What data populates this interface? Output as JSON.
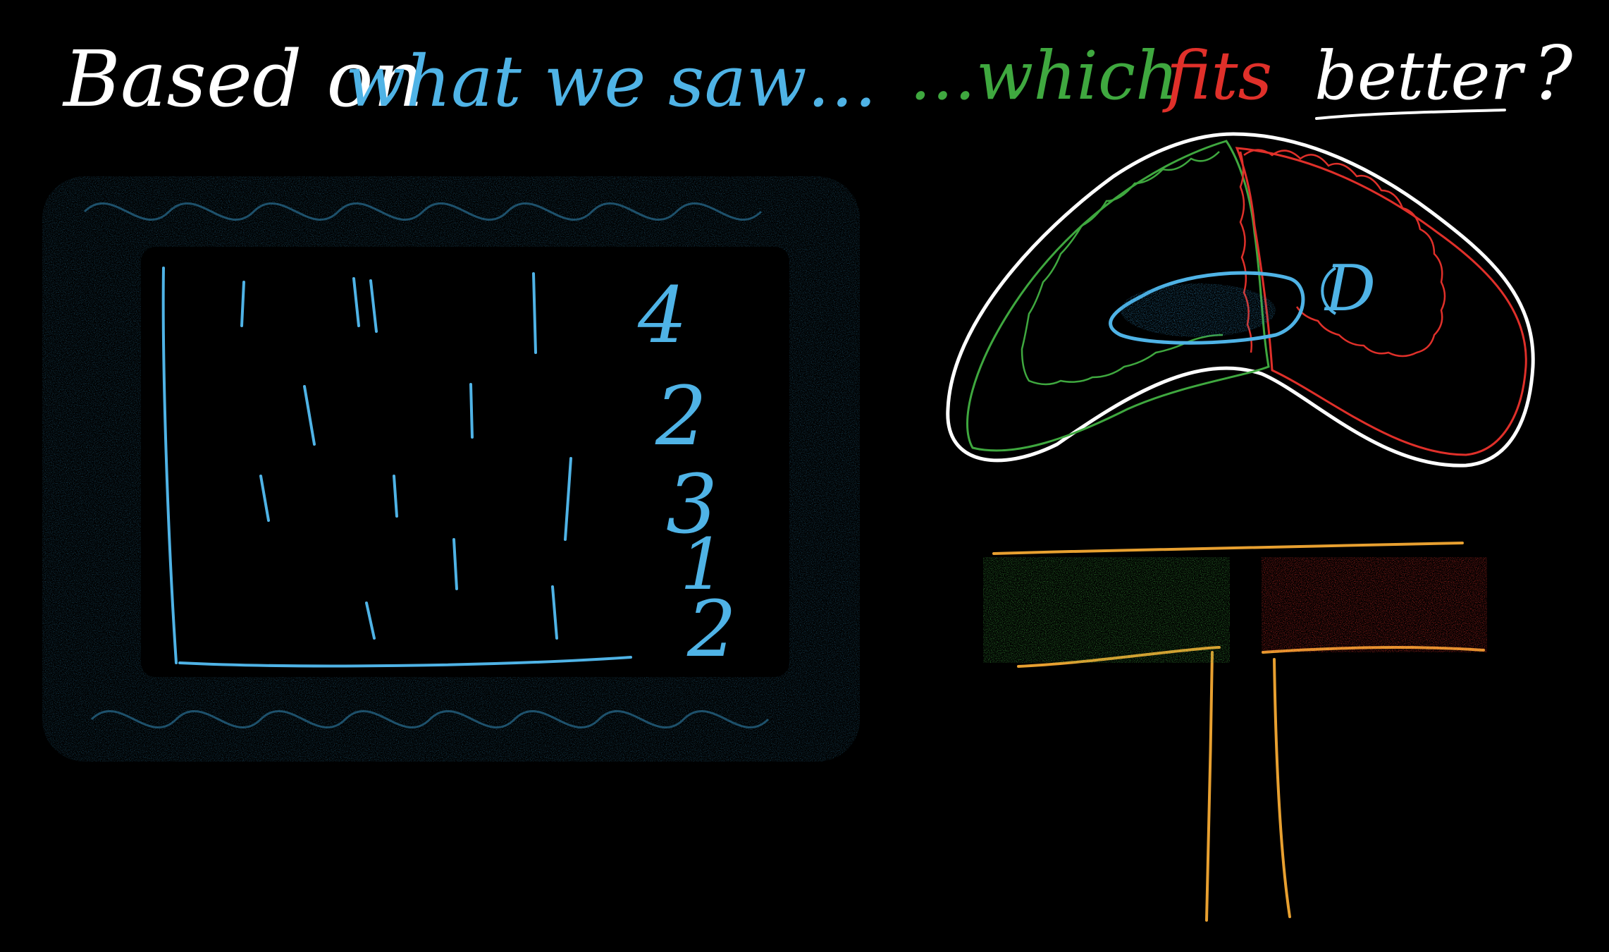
{
  "heading": {
    "left_prefix": "Based on",
    "left_highlight": "what we saw…",
    "right_prefix": "…which",
    "right_fits": "fits",
    "right_better": "better",
    "right_q": "?"
  },
  "tally": {
    "row_counts": [
      "4",
      "2",
      "3",
      "1",
      "2"
    ]
  },
  "blob": {
    "data_label": "D"
  },
  "colors": {
    "white": "#ffffff",
    "blue": "#4fb3e6",
    "green": "#3fa83f",
    "red": "#e0302a",
    "orange": "#e8a030",
    "background": "#000000"
  }
}
